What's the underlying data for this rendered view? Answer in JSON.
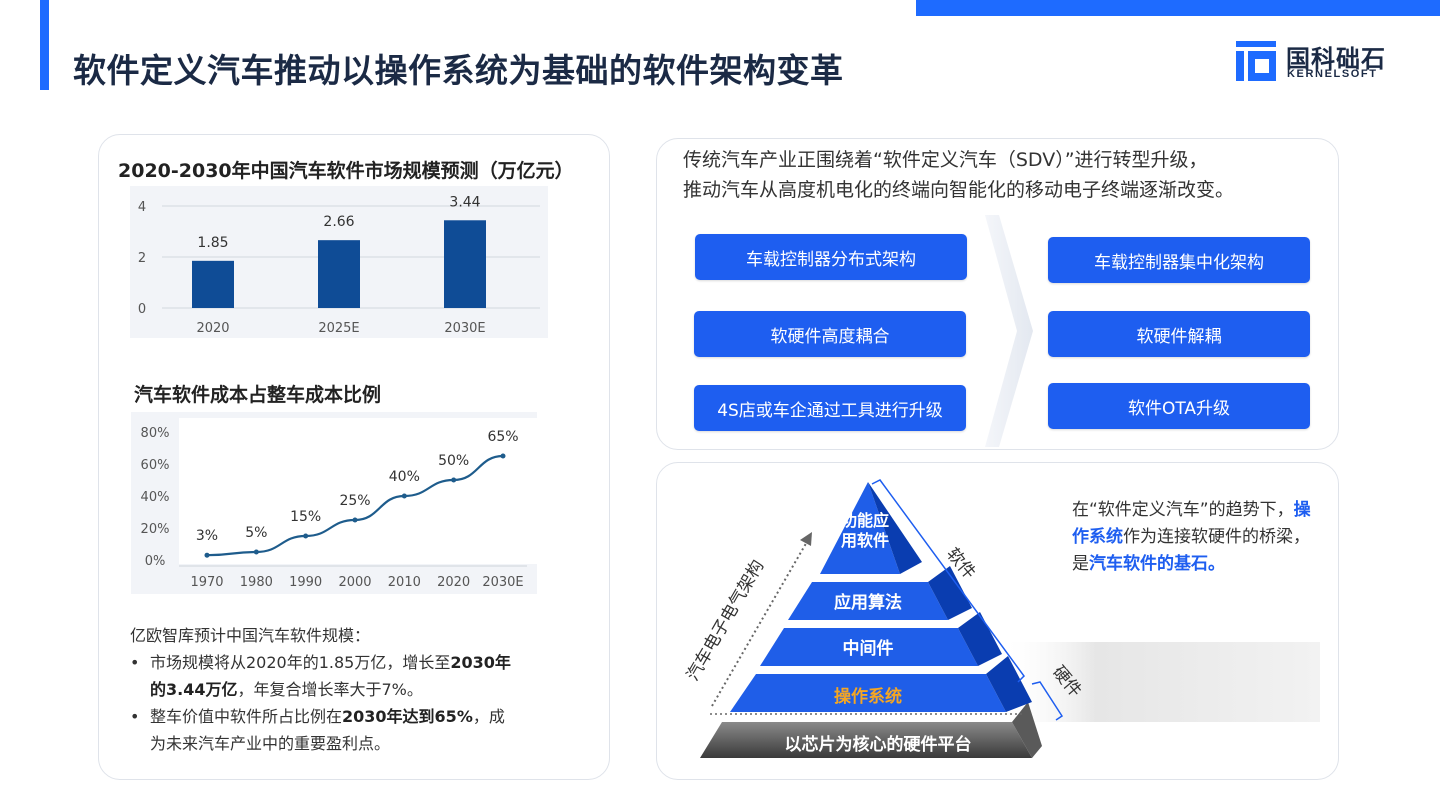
{
  "page": {
    "title": "软件定义汽车推动以操作系统为基础的软件架构变革"
  },
  "logo": {
    "cn": "国科础石",
    "en": "KERNELSOFT",
    "color": "#1e6bff"
  },
  "bar_section": {
    "chart_data": {
      "type": "bar",
      "title": "2020-2030年中国汽车软件市场规模预测（万亿元）",
      "categories": [
        "2020",
        "2025E",
        "2030E"
      ],
      "values": [
        1.85,
        2.66,
        3.44
      ],
      "value_labels": [
        "1.85",
        "2.66",
        "3.44"
      ],
      "yticks": [
        "0",
        "2",
        "4"
      ],
      "ylim": [
        0,
        4
      ],
      "bar_color": "#0f4c96",
      "grid": true
    }
  },
  "line_section": {
    "chart_data": {
      "type": "line",
      "title": "汽车软件成本占整车成本比例",
      "categories": [
        "1970",
        "1980",
        "1990",
        "2000",
        "2010",
        "2020",
        "2030E"
      ],
      "values": [
        3,
        5,
        15,
        25,
        40,
        50,
        65
      ],
      "value_labels": [
        "3%",
        "5%",
        "15%",
        "25%",
        "40%",
        "50%",
        "65%"
      ],
      "yticks": [
        "0%",
        "20%",
        "40%",
        "60%",
        "80%"
      ],
      "ylim": [
        0,
        80
      ],
      "line_color": "#1e5c8c"
    }
  },
  "notes": {
    "intro": "亿欧智库预计中国汽车软件规模：",
    "b1_pre": "市场规模将从2020年的1.85万亿，增长至",
    "b1_bold1": "2030年",
    "b1_bold2": "的3.44万亿",
    "b1_post": "，年复合增长率大于7%。",
    "b2_pre": "整车价值中软件所占比例在",
    "b2_bold": "2030年达到65%",
    "b2_post1": "，成",
    "b2_post2": "为未来汽车产业中的重要盈利点。"
  },
  "transition": {
    "line1": "传统汽车产业正围绕着“软件定义汽车（SDV）”进行转型升级，",
    "line2": "推动汽车从高度机电化的终端向智能化的移动电子终端逐渐改变。",
    "left_items": [
      "车载控制器分布式架构",
      "软硬件高度耦合",
      "4S店或车企通过工具进行升级"
    ],
    "right_items": [
      "车载控制器集中化架构",
      "软硬件解耦",
      "软件OTA升级"
    ],
    "pill_color": "#1e5ef0"
  },
  "pyramid": {
    "layers": [
      {
        "line1": "功能应",
        "line2": "用软件"
      },
      {
        "line1": "应用算法"
      },
      {
        "line1": "中间件"
      },
      {
        "line1": "操作系统"
      }
    ],
    "base": "以芯片为核心的硬件平台",
    "axis_label": "汽车电子电气架构",
    "software_label": "软件",
    "hardware_label": "硬件",
    "layer_color": "#1f5ee8",
    "highlight_color": "#f5a623"
  },
  "right_note": {
    "pre": "在“软件定义汽车”的趋势下，",
    "bold1": "操作系统",
    "mid": "作为连接软硬件的桥梁，是",
    "bold2": "汽车软件的基石",
    "end": "。"
  }
}
